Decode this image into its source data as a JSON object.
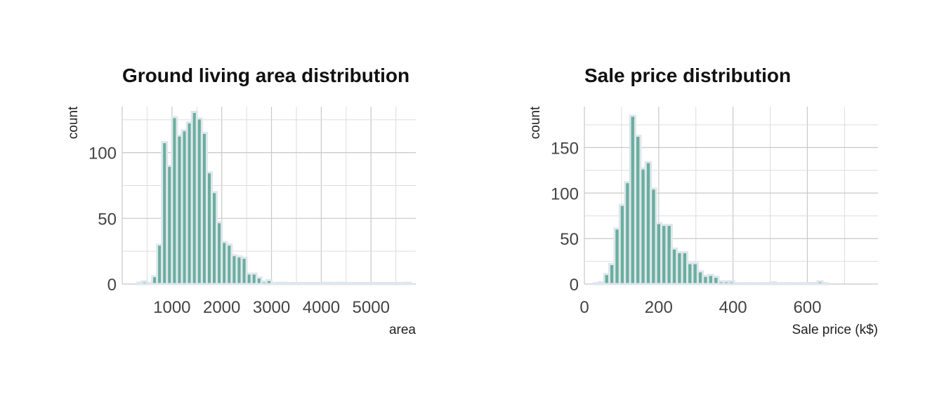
{
  "chart_data": [
    {
      "type": "bar",
      "title": "Ground living area distribution",
      "xlabel": "area",
      "ylabel": "count",
      "xlim": [
        0,
        5900
      ],
      "ylim": [
        0,
        135
      ],
      "x_ticks": [
        1000,
        2000,
        3000,
        4000,
        5000
      ],
      "y_ticks": [
        0,
        50,
        100
      ],
      "bin_width": 100,
      "bin_start": 300,
      "values": [
        1,
        2,
        0,
        6,
        30,
        108,
        90,
        127,
        113,
        117,
        123,
        131,
        126,
        115,
        85,
        70,
        47,
        32,
        30,
        22,
        21,
        20,
        8,
        8,
        5,
        2,
        3,
        0,
        1,
        1,
        0,
        0,
        0,
        0,
        0,
        0,
        0,
        1,
        1,
        0,
        1,
        1,
        0,
        0,
        0,
        0,
        0,
        0,
        0,
        0,
        0,
        0,
        0,
        0,
        1
      ]
    },
    {
      "type": "bar",
      "title": "Sale price distribution",
      "xlabel": "Sale price (k$)",
      "ylabel": "count",
      "xlim": [
        0,
        790
      ],
      "ylim": [
        0,
        195
      ],
      "x_ticks": [
        0,
        200,
        400,
        600
      ],
      "y_ticks": [
        0,
        50,
        100,
        150
      ],
      "bin_width": 14,
      "bin_start": 25,
      "values": [
        1,
        2,
        11,
        22,
        61,
        87,
        112,
        185,
        163,
        127,
        134,
        105,
        67,
        65,
        65,
        39,
        35,
        35,
        23,
        23,
        14,
        9,
        10,
        8,
        3,
        3,
        3,
        1,
        1,
        1,
        1,
        1,
        1,
        1,
        2,
        1,
        1,
        1,
        1,
        1,
        1,
        0,
        0,
        3,
        1
      ]
    }
  ]
}
